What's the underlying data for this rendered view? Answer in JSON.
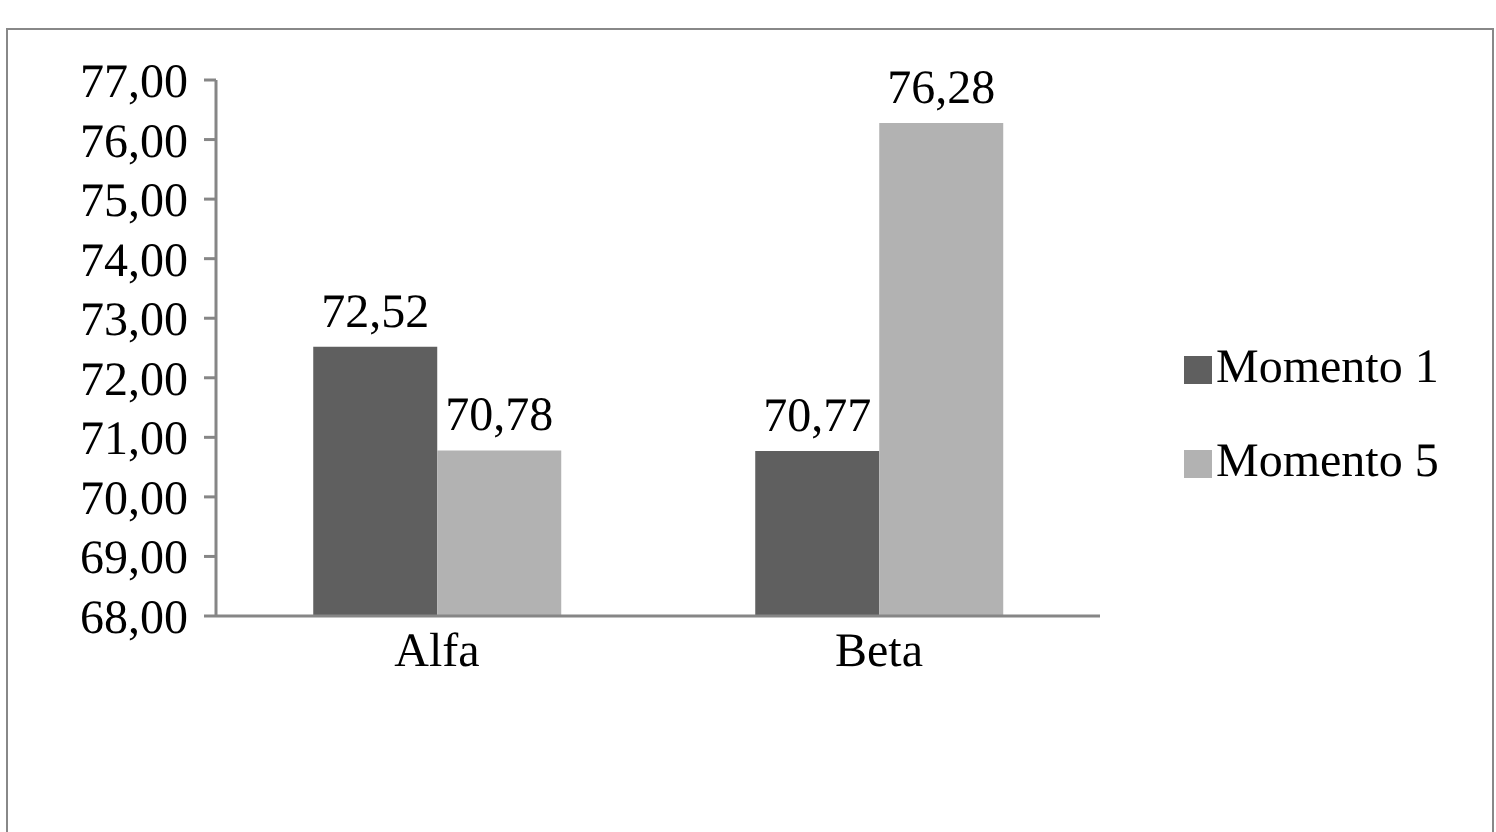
{
  "chart_data": {
    "type": "bar",
    "categories": [
      "Alfa",
      "Beta"
    ],
    "series": [
      {
        "name": "Momento 1",
        "color": "#5f5f5f",
        "values": [
          72.52,
          70.77
        ],
        "value_labels": [
          "72,52",
          "70,77"
        ]
      },
      {
        "name": "Momento 5",
        "color": "#b2b2b2",
        "values": [
          70.78,
          76.28
        ],
        "value_labels": [
          "70,78",
          "76,28"
        ]
      }
    ],
    "ylim": [
      68,
      77
    ],
    "yticks": [
      {
        "value": 68,
        "label": "68,00"
      },
      {
        "value": 69,
        "label": "69,00"
      },
      {
        "value": 70,
        "label": "70,00"
      },
      {
        "value": 71,
        "label": "71,00"
      },
      {
        "value": 72,
        "label": "72,00"
      },
      {
        "value": 73,
        "label": "73,00"
      },
      {
        "value": 74,
        "label": "74,00"
      },
      {
        "value": 75,
        "label": "75,00"
      },
      {
        "value": 76,
        "label": "76,00"
      },
      {
        "value": 77,
        "label": "77,00"
      }
    ],
    "grid": false,
    "legend": "right"
  }
}
